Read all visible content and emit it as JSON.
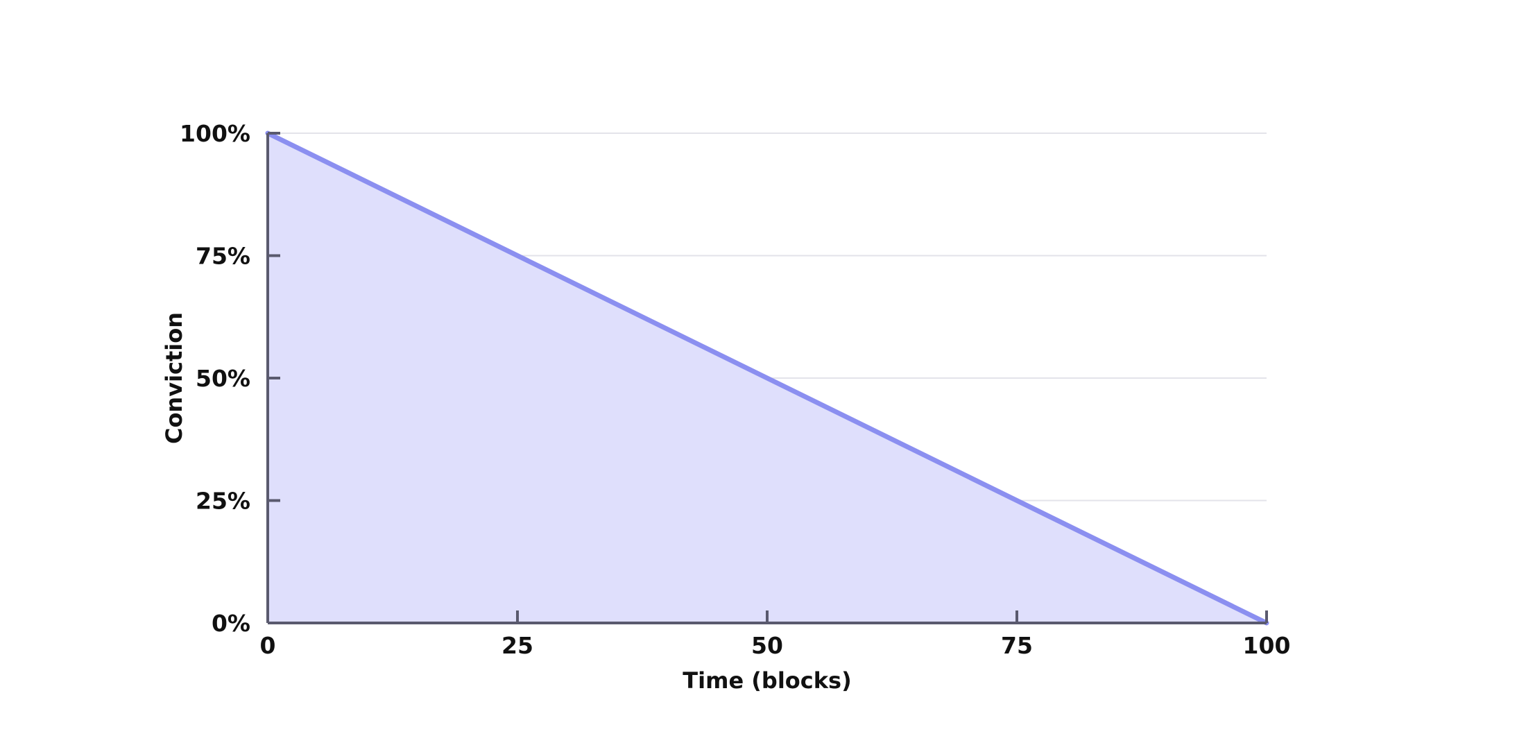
{
  "chart_data": {
    "type": "area",
    "title": "",
    "xlabel": "Time (blocks)",
    "ylabel": "Conviction",
    "xlim": [
      0,
      100
    ],
    "ylim": [
      0,
      100
    ],
    "x_ticks": [
      0,
      25,
      50,
      75,
      100
    ],
    "x_tick_labels": [
      "0",
      "25",
      "50",
      "75",
      "100"
    ],
    "y_ticks": [
      0,
      25,
      50,
      75,
      100
    ],
    "y_tick_labels": [
      "0%",
      "25%",
      "50%",
      "75%",
      "100%"
    ],
    "grid": "horizontal",
    "legend": "none",
    "series": [
      {
        "x": [
          0,
          100
        ],
        "y": [
          100,
          0
        ],
        "line_color": "#8b8ff0",
        "fill_color": "#dfdffc"
      }
    ]
  }
}
